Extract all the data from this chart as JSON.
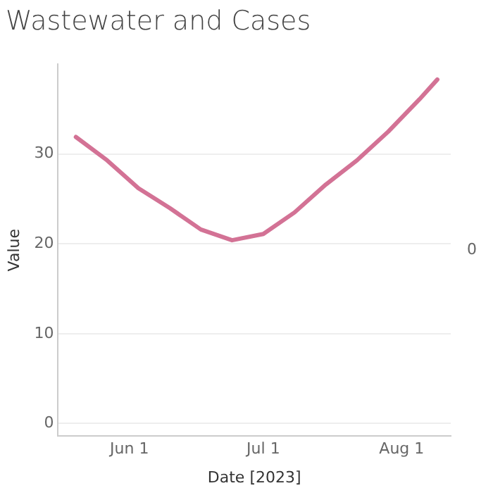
{
  "chart_data": {
    "type": "line",
    "title": "Wastewater and Cases",
    "xlabel": "Date [2023]",
    "ylabel": "Value",
    "x": [
      "2023-05-20",
      "2023-05-27",
      "2023-06-03",
      "2023-06-10",
      "2023-06-17",
      "2023-06-24",
      "2023-07-01",
      "2023-07-08",
      "2023-07-15",
      "2023-07-22",
      "2023-07-29",
      "2023-08-05",
      "2023-08-09"
    ],
    "series": [
      {
        "color": "#d37295",
        "values": [
          31.9,
          29.3,
          26.2,
          24.0,
          21.6,
          20.4,
          21.1,
          23.5,
          26.6,
          29.3,
          32.5,
          36.1,
          38.3
        ]
      }
    ],
    "xlim": [
      "2023-05-16",
      "2023-08-12"
    ],
    "xticks": [
      {
        "value": "2023-06-01",
        "label": "Jun 1"
      },
      {
        "value": "2023-07-01",
        "label": "Jul 1"
      },
      {
        "value": "2023-08-01",
        "label": "Aug 1"
      }
    ],
    "ylim": [
      -1.4,
      40
    ],
    "yticks": [
      0,
      10,
      20,
      30
    ],
    "annotations": [
      "0"
    ],
    "grid": "y",
    "legend": false,
    "marker": "none",
    "line_style": "solid"
  }
}
